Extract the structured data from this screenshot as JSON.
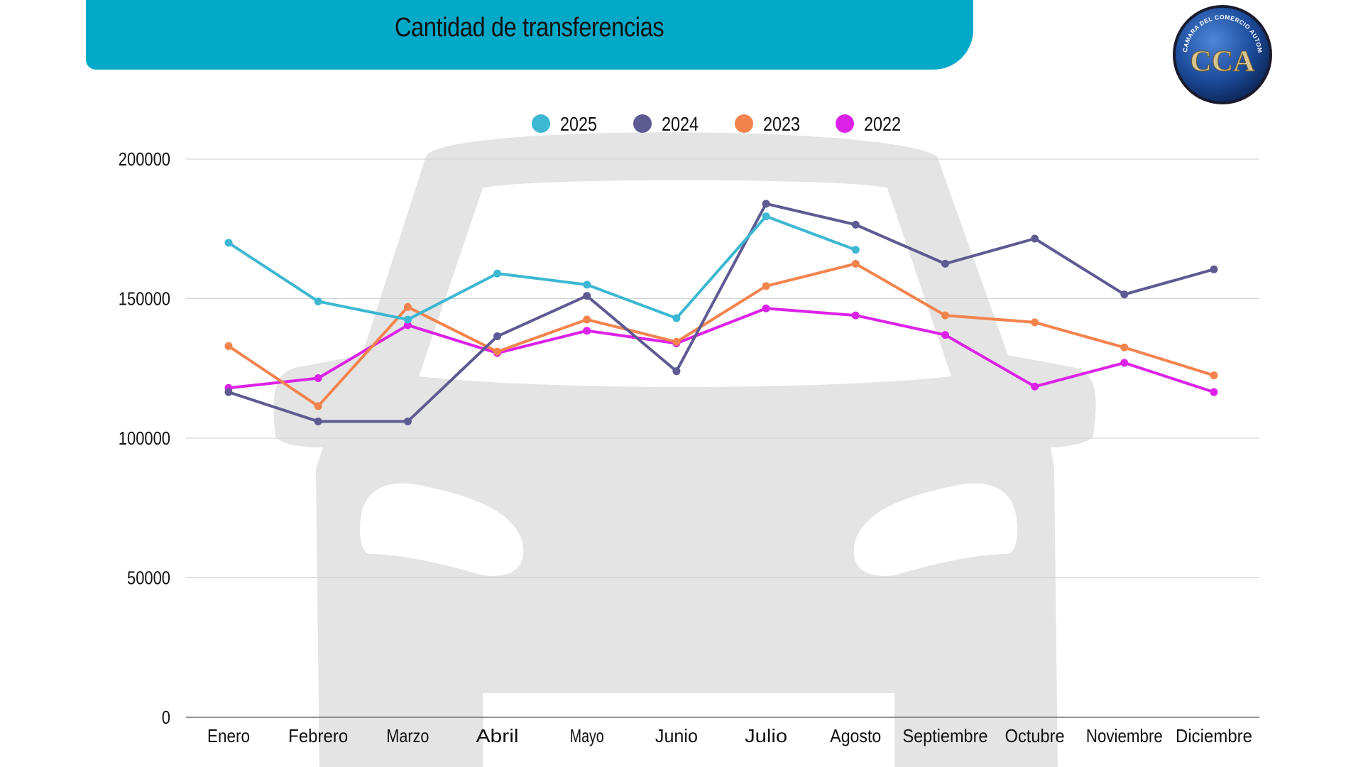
{
  "header": {
    "title": "Cantidad de transferencias"
  },
  "logo": {
    "text": "CAMARA DEL COMERCIO AUTOMOTOR",
    "letters": "CCA"
  },
  "colors": {
    "banner": "#00a9c8",
    "series_2025": "#3db7d2",
    "series_2024": "#5e5a92",
    "series_2023": "#f3834d",
    "series_2022": "#dc22e8",
    "grid": "#cfcfcf",
    "watermark": "#e4e4e4"
  },
  "chart_data": {
    "type": "line",
    "title": "Cantidad de transferencias",
    "xlabel": "",
    "ylabel": "",
    "ylim": [
      0,
      200000
    ],
    "yticks": [
      "0",
      "50000",
      "100000",
      "150000",
      "200000"
    ],
    "grid": true,
    "legend_position": "top-center",
    "categories": [
      "Enero",
      "Febrero",
      "Marzo",
      "Abril",
      "Mayo",
      "Junio",
      "Julio",
      "Agosto",
      "Septiembre",
      "Octubre",
      "Noviembre",
      "Diciembre"
    ],
    "series": [
      {
        "name": "2025",
        "color": "#3db7d2",
        "values": [
          170000,
          149000,
          142500,
          159000,
          155000,
          143000,
          179500,
          167500,
          null,
          null,
          null,
          null
        ]
      },
      {
        "name": "2024",
        "color": "#5e5a92",
        "values": [
          116500,
          106000,
          106000,
          136500,
          151000,
          124000,
          184000,
          176500,
          162500,
          171500,
          151500,
          160500
        ]
      },
      {
        "name": "2023",
        "color": "#f3834d",
        "values": [
          133000,
          111500,
          147000,
          131000,
          142500,
          134500,
          154500,
          162500,
          144000,
          141500,
          132500,
          122500
        ]
      },
      {
        "name": "2022",
        "color": "#dc22e8",
        "values": [
          118000,
          121500,
          140500,
          130500,
          138500,
          134000,
          146500,
          144000,
          137000,
          118500,
          127000,
          116500
        ]
      }
    ]
  }
}
